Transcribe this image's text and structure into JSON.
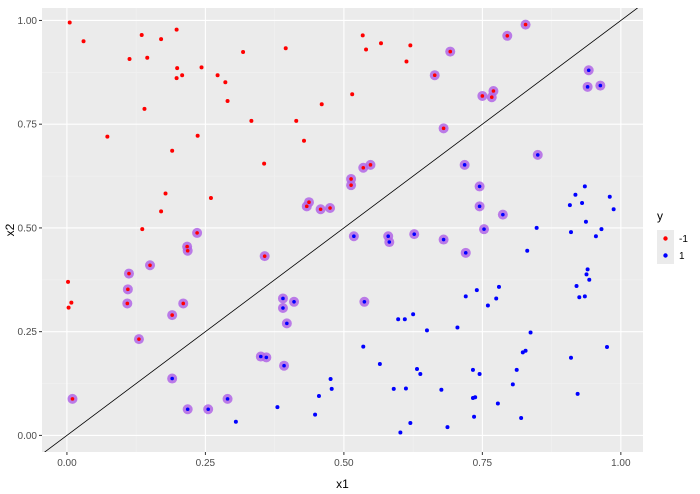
{
  "chart_data": {
    "type": "scatter",
    "xlabel": "x1",
    "ylabel": "x2",
    "xlim": [
      -0.045,
      1.04
    ],
    "ylim": [
      -0.04,
      1.03
    ],
    "x_ticks": [
      {
        "value": 0.0,
        "label": "0.00"
      },
      {
        "value": 0.25,
        "label": "0.25"
      },
      {
        "value": 0.5,
        "label": "0.50"
      },
      {
        "value": 0.75,
        "label": "0.75"
      },
      {
        "value": 1.0,
        "label": "1.00"
      }
    ],
    "y_ticks": [
      {
        "value": 0.0,
        "label": "0.00"
      },
      {
        "value": 0.25,
        "label": "0.25"
      },
      {
        "value": 0.5,
        "label": "0.50"
      },
      {
        "value": 0.75,
        "label": "0.75"
      },
      {
        "value": 1.0,
        "label": "1.00"
      }
    ],
    "grid": true,
    "legend": {
      "title": "y",
      "position": "right",
      "entries": [
        {
          "label": "-1",
          "color": "#ff0000"
        },
        {
          "label": "1",
          "color": "#0000ff"
        }
      ]
    },
    "colors": {
      "panel": "#ebebeb",
      "grid_major": "#ffffff",
      "grid_minor": "#f2f2f2",
      "class_neg": "#ff0000",
      "class_pos": "#0000ff",
      "highlight": "#b266e6",
      "line": "#000000"
    },
    "reference_line": {
      "intercept": 0.0,
      "slope": 1.0
    },
    "series": [
      {
        "name": "-1",
        "points": [
          [
            0.005,
            0.995
          ],
          [
            0.03,
            0.95
          ],
          [
            0.113,
            0.907
          ],
          [
            0.135,
            0.965
          ],
          [
            0.145,
            0.91
          ],
          [
            0.17,
            0.955
          ],
          [
            0.198,
            0.978
          ],
          [
            0.199,
            0.885
          ],
          [
            0.198,
            0.861
          ],
          [
            0.208,
            0.868
          ],
          [
            0.243,
            0.887
          ],
          [
            0.272,
            0.868
          ],
          [
            0.286,
            0.851
          ],
          [
            0.29,
            0.806
          ],
          [
            0.318,
            0.924
          ],
          [
            0.395,
            0.933
          ],
          [
            0.14,
            0.787
          ],
          [
            0.073,
            0.72
          ],
          [
            0.19,
            0.686
          ],
          [
            0.236,
            0.722
          ],
          [
            0.333,
            0.758
          ],
          [
            0.414,
            0.758
          ],
          [
            0.428,
            0.71
          ],
          [
            0.46,
            0.798
          ],
          [
            0.515,
            0.822
          ],
          [
            0.534,
            0.964
          ],
          [
            0.54,
            0.93
          ],
          [
            0.567,
            0.945
          ],
          [
            0.613,
            0.901
          ],
          [
            0.62,
            0.94
          ],
          [
            0.178,
            0.583
          ],
          [
            0.17,
            0.54
          ],
          [
            0.26,
            0.572
          ],
          [
            0.356,
            0.655
          ],
          [
            0.136,
            0.497
          ],
          [
            0.002,
            0.37
          ],
          [
            0.008,
            0.32
          ],
          [
            0.003,
            0.308
          ]
        ]
      },
      {
        "name": "1",
        "points": [
          [
            0.305,
            0.033
          ],
          [
            0.38,
            0.068
          ],
          [
            0.448,
            0.05
          ],
          [
            0.455,
            0.095
          ],
          [
            0.476,
            0.136
          ],
          [
            0.478,
            0.112
          ],
          [
            0.535,
            0.214
          ],
          [
            0.565,
            0.172
          ],
          [
            0.59,
            0.112
          ],
          [
            0.598,
            0.28
          ],
          [
            0.602,
            0.007
          ],
          [
            0.61,
            0.28
          ],
          [
            0.612,
            0.113
          ],
          [
            0.62,
            0.03
          ],
          [
            0.625,
            0.292
          ],
          [
            0.632,
            0.16
          ],
          [
            0.638,
            0.148
          ],
          [
            0.65,
            0.253
          ],
          [
            0.676,
            0.11
          ],
          [
            0.687,
            0.02
          ],
          [
            0.705,
            0.26
          ],
          [
            0.72,
            0.335
          ],
          [
            0.733,
            0.158
          ],
          [
            0.733,
            0.09
          ],
          [
            0.735,
            0.045
          ],
          [
            0.737,
            0.092
          ],
          [
            0.74,
            0.35
          ],
          [
            0.745,
            0.148
          ],
          [
            0.76,
            0.313
          ],
          [
            0.775,
            0.33
          ],
          [
            0.778,
            0.077
          ],
          [
            0.78,
            0.358
          ],
          [
            0.805,
            0.123
          ],
          [
            0.812,
            0.158
          ],
          [
            0.823,
            0.2
          ],
          [
            0.828,
            0.204
          ],
          [
            0.831,
            0.445
          ],
          [
            0.837,
            0.248
          ],
          [
            0.848,
            0.5
          ],
          [
            0.82,
            0.042
          ],
          [
            0.908,
            0.555
          ],
          [
            0.91,
            0.49
          ],
          [
            0.91,
            0.187
          ],
          [
            0.918,
            0.58
          ],
          [
            0.922,
            0.1
          ],
          [
            0.92,
            0.36
          ],
          [
            0.925,
            0.333
          ],
          [
            0.93,
            0.56
          ],
          [
            0.935,
            0.335
          ],
          [
            0.935,
            0.6
          ],
          [
            0.937,
            0.515
          ],
          [
            0.94,
            0.4
          ],
          [
            0.943,
            0.375
          ],
          [
            0.955,
            0.48
          ],
          [
            0.965,
            0.497
          ],
          [
            0.975,
            0.213
          ],
          [
            0.98,
            0.575
          ],
          [
            0.987,
            0.545
          ],
          [
            0.938,
            0.388
          ]
        ]
      }
    ],
    "highlighted_points": [
      [
        0.01,
        0.088
      ],
      [
        0.112,
        0.39
      ],
      [
        0.11,
        0.352
      ],
      [
        0.109,
        0.318
      ],
      [
        0.13,
        0.232
      ],
      [
        0.15,
        0.41
      ],
      [
        0.19,
        0.29
      ],
      [
        0.19,
        0.137
      ],
      [
        0.21,
        0.318
      ],
      [
        0.217,
        0.455
      ],
      [
        0.218,
        0.445
      ],
      [
        0.235,
        0.488
      ],
      [
        0.218,
        0.063
      ],
      [
        0.255,
        0.063
      ],
      [
        0.29,
        0.088
      ],
      [
        0.357,
        0.432
      ],
      [
        0.35,
        0.19
      ],
      [
        0.36,
        0.188
      ],
      [
        0.39,
        0.33
      ],
      [
        0.39,
        0.307
      ],
      [
        0.392,
        0.168
      ],
      [
        0.397,
        0.27
      ],
      [
        0.41,
        0.322
      ],
      [
        0.433,
        0.552
      ],
      [
        0.437,
        0.562
      ],
      [
        0.458,
        0.545
      ],
      [
        0.475,
        0.548
      ],
      [
        0.513,
        0.603
      ],
      [
        0.513,
        0.618
      ],
      [
        0.518,
        0.48
      ],
      [
        0.535,
        0.645
      ],
      [
        0.548,
        0.652
      ],
      [
        0.537,
        0.322
      ],
      [
        0.58,
        0.48
      ],
      [
        0.582,
        0.466
      ],
      [
        0.627,
        0.485
      ],
      [
        0.664,
        0.868
      ],
      [
        0.68,
        0.74
      ],
      [
        0.68,
        0.472
      ],
      [
        0.692,
        0.925
      ],
      [
        0.718,
        0.652
      ],
      [
        0.72,
        0.44
      ],
      [
        0.745,
        0.6
      ],
      [
        0.745,
        0.552
      ],
      [
        0.75,
        0.818
      ],
      [
        0.753,
        0.497
      ],
      [
        0.767,
        0.815
      ],
      [
        0.77,
        0.83
      ],
      [
        0.787,
        0.532
      ],
      [
        0.795,
        0.963
      ],
      [
        0.828,
        0.99
      ],
      [
        0.85,
        0.676
      ],
      [
        0.942,
        0.88
      ],
      [
        0.94,
        0.84
      ],
      [
        0.963,
        0.843
      ]
    ]
  }
}
